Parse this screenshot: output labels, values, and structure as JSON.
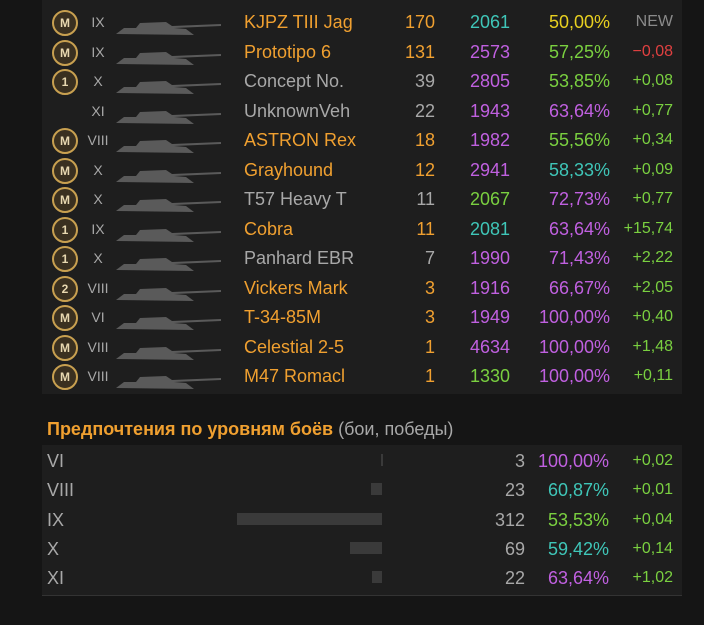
{
  "vehicles": {
    "rows": [
      {
        "badge": "M",
        "tier": "IX",
        "name": "KJPZ TIII Jag",
        "battles": "170",
        "rating": "2061",
        "winrate": "50,00%",
        "delta": "NEW",
        "name_color": "#f0a030",
        "rating_color": "#3fc6b8",
        "winrate_color": "#e8d020",
        "delta_color": "#8a8a8a"
      },
      {
        "badge": "M",
        "tier": "IX",
        "name": "Prototipo 6",
        "battles": "131",
        "rating": "2573",
        "winrate": "57,25%",
        "delta": "−0,08",
        "name_color": "#f0a030",
        "rating_color": "#c060e0",
        "winrate_color": "#7ad040",
        "delta_color": "#e04040"
      },
      {
        "badge": "1",
        "tier": "X",
        "name": "Concept No.",
        "battles": "39",
        "rating": "2805",
        "winrate": "53,85%",
        "delta": "+0,08",
        "name_color": "#a8a8a8",
        "rating_color": "#c060e0",
        "winrate_color": "#7ad040",
        "delta_color": "#7ad040"
      },
      {
        "badge": null,
        "tier": "XI",
        "name": "UnknownVeh",
        "battles": "22",
        "rating": "1943",
        "winrate": "63,64%",
        "delta": "+0,77",
        "name_color": "#a8a8a8",
        "rating_color": "#c060e0",
        "winrate_color": "#c060e0",
        "delta_color": "#7ad040"
      },
      {
        "badge": "M",
        "tier": "VIII",
        "name": "ASTRON Rex",
        "battles": "18",
        "rating": "1982",
        "winrate": "55,56%",
        "delta": "+0,34",
        "name_color": "#f0a030",
        "rating_color": "#c060e0",
        "winrate_color": "#7ad040",
        "delta_color": "#7ad040"
      },
      {
        "badge": "M",
        "tier": "X",
        "name": "Grayhound",
        "battles": "12",
        "rating": "2941",
        "winrate": "58,33%",
        "delta": "+0,09",
        "name_color": "#f0a030",
        "rating_color": "#c060e0",
        "winrate_color": "#3fc6b8",
        "delta_color": "#7ad040"
      },
      {
        "badge": "M",
        "tier": "X",
        "name": "T57 Heavy T",
        "battles": "11",
        "rating": "2067",
        "winrate": "72,73%",
        "delta": "+0,77",
        "name_color": "#a8a8a8",
        "rating_color": "#7ad040",
        "winrate_color": "#c060e0",
        "delta_color": "#7ad040"
      },
      {
        "badge": "1",
        "tier": "IX",
        "name": "Cobra",
        "battles": "11",
        "rating": "2081",
        "winrate": "63,64%",
        "delta": "+15,74",
        "name_color": "#f0a030",
        "rating_color": "#3fc6b8",
        "winrate_color": "#c060e0",
        "delta_color": "#7ad040"
      },
      {
        "badge": "1",
        "tier": "X",
        "name": "Panhard EBR",
        "battles": "7",
        "rating": "1990",
        "winrate": "71,43%",
        "delta": "+2,22",
        "name_color": "#a8a8a8",
        "rating_color": "#c060e0",
        "winrate_color": "#c060e0",
        "delta_color": "#7ad040"
      },
      {
        "badge": "2",
        "tier": "VIII",
        "name": "Vickers Mark",
        "battles": "3",
        "rating": "1916",
        "winrate": "66,67%",
        "delta": "+2,05",
        "name_color": "#f0a030",
        "rating_color": "#c060e0",
        "winrate_color": "#c060e0",
        "delta_color": "#7ad040"
      },
      {
        "badge": "M",
        "tier": "VI",
        "name": "T-34-85M",
        "battles": "3",
        "rating": "1949",
        "winrate": "100,00%",
        "delta": "+0,40",
        "name_color": "#f0a030",
        "rating_color": "#c060e0",
        "winrate_color": "#c060e0",
        "delta_color": "#7ad040"
      },
      {
        "badge": "M",
        "tier": "VIII",
        "name": "Celestial 2-5",
        "battles": "1",
        "rating": "4634",
        "winrate": "100,00%",
        "delta": "+1,48",
        "name_color": "#f0a030",
        "rating_color": "#c060e0",
        "winrate_color": "#c060e0",
        "delta_color": "#7ad040"
      },
      {
        "badge": "M",
        "tier": "VIII",
        "name": "M47 Romacl",
        "battles": "1",
        "rating": "1330",
        "winrate": "100,00%",
        "delta": "+0,11",
        "name_color": "#f0a030",
        "rating_color": "#7ad040",
        "winrate_color": "#c060e0",
        "delta_color": "#7ad040"
      }
    ]
  },
  "tiers": {
    "title": "Предпочтения по уровням боёв",
    "subtitle": "(бои, победы)",
    "rows": [
      {
        "tier": "VI",
        "battles": 3,
        "winrate": "100,00%",
        "delta": "+0,02",
        "winrate_color": "#c060e0"
      },
      {
        "tier": "VIII",
        "battles": 23,
        "winrate": "60,87%",
        "delta": "+0,01",
        "winrate_color": "#3fc6b8"
      },
      {
        "tier": "IX",
        "battles": 312,
        "winrate": "53,53%",
        "delta": "+0,04",
        "winrate_color": "#7ad040"
      },
      {
        "tier": "X",
        "battles": 69,
        "winrate": "59,42%",
        "delta": "+0,14",
        "winrate_color": "#3fc6b8"
      },
      {
        "tier": "XI",
        "battles": 22,
        "winrate": "63,64%",
        "delta": "+1,02",
        "winrate_color": "#c060e0"
      }
    ]
  }
}
